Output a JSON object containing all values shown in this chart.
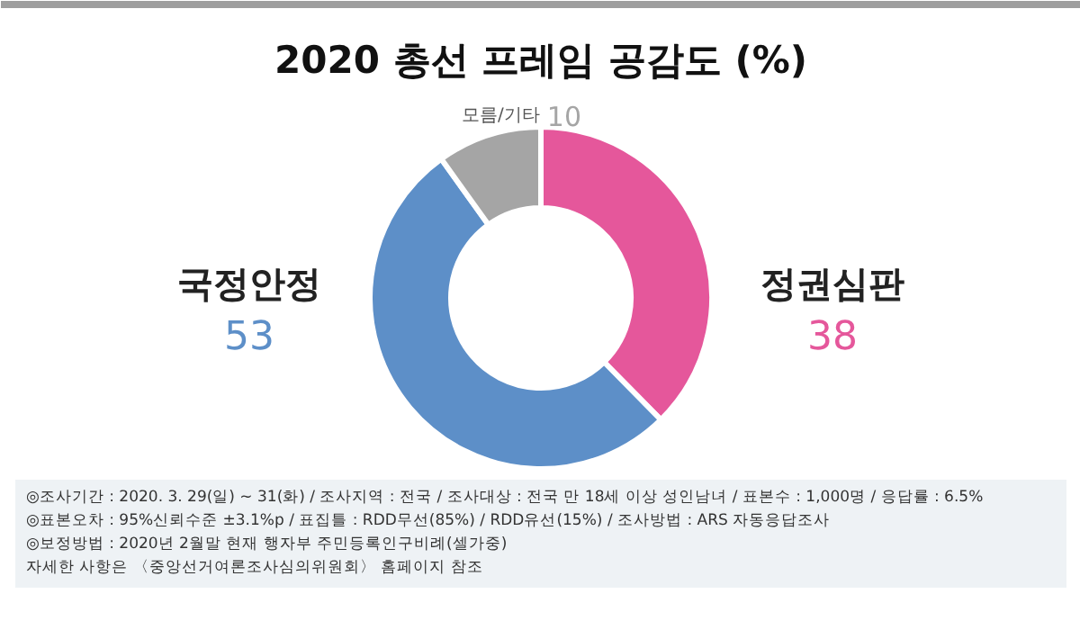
{
  "chart_data": {
    "type": "donut",
    "title": "2020 총선 프레임 공감도 (%)",
    "categories": [
      "정권심판",
      "국정안정",
      "모름/기타"
    ],
    "values": [
      38,
      53,
      10
    ],
    "colors": [
      "#e5579b",
      "#5d8fc8",
      "#a5a5a5"
    ],
    "data_labels": true,
    "annotations": [
      "◎조사기간 : 2020. 3. 29(일) ~ 31(화) / 조사지역 : 전국 / 조사대상 : 전국 만 18세 이상 성인남녀 / 표본수 : 1,000명 / 응답률 : 6.5%",
      "◎표본오차 : 95%신뢰수준 ±3.1%p / 표집틀 : RDD무선(85%) / RDD유선(15%) / 조사방법 : ARS 자동응답조사",
      "◎보정방법 : 2020년 2월말 현재 행자부 주민등록인구비례(셀가중)",
      "자세한 사항은 〈중앙선거여론조사심의위원회〉 홈페이지 참조"
    ]
  }
}
